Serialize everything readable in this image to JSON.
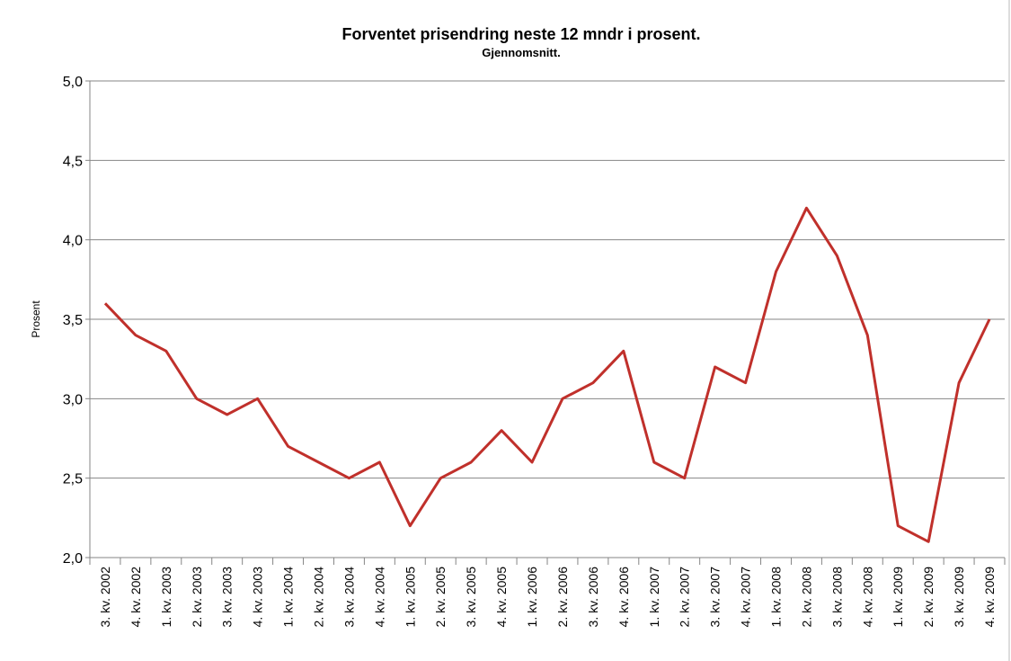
{
  "chart_data": {
    "type": "line",
    "title": "Forventet prisendring neste 12 mndr i prosent.",
    "subtitle": "Gjennomsnitt.",
    "y_label": "Prosent",
    "categories": [
      "3. kv. 2002",
      "4. kv. 2002",
      "1. kv. 2003",
      "2. kv. 2003",
      "3. kv. 2003",
      "4. kv. 2003",
      "1. kv. 2004",
      "2. kv. 2004",
      "3. kv. 2004",
      "4. kv. 2004",
      "1. kv. 2005",
      "2. kv. 2005",
      "3. kv. 2005",
      "4. kv. 2005",
      "1. kv. 2006",
      "2. kv. 2006",
      "3. kv. 2006",
      "4. kv. 2006",
      "1. kv. 2007",
      "2. kv. 2007",
      "3. kv. 2007",
      "4. kv. 2007",
      "1. kv. 2008",
      "2. kv. 2008",
      "3. kv. 2008",
      "4. kv. 2008",
      "1. kv. 2009",
      "2. kv. 2009",
      "3. kv. 2009",
      "4. kv. 2009"
    ],
    "values": [
      3.6,
      3.4,
      3.3,
      3.0,
      2.9,
      3.0,
      2.7,
      2.6,
      2.5,
      2.6,
      2.2,
      2.5,
      2.6,
      2.8,
      2.6,
      3.0,
      3.1,
      3.3,
      2.6,
      2.5,
      3.2,
      3.1,
      3.8,
      4.2,
      3.9,
      3.4,
      2.2,
      2.1,
      3.1,
      3.5
    ],
    "color": "#c0302b",
    "ylim": [
      2,
      5
    ],
    "yticks": [
      {
        "value": 2,
        "label": "2,0"
      },
      {
        "value": 2.5,
        "label": "2,5"
      },
      {
        "value": 3,
        "label": "3,0"
      },
      {
        "value": 3.5,
        "label": "3,5"
      },
      {
        "value": 4,
        "label": "4,0"
      },
      {
        "value": 4.5,
        "label": "4,5"
      },
      {
        "value": 5,
        "label": "5,0"
      }
    ],
    "grid": true
  }
}
